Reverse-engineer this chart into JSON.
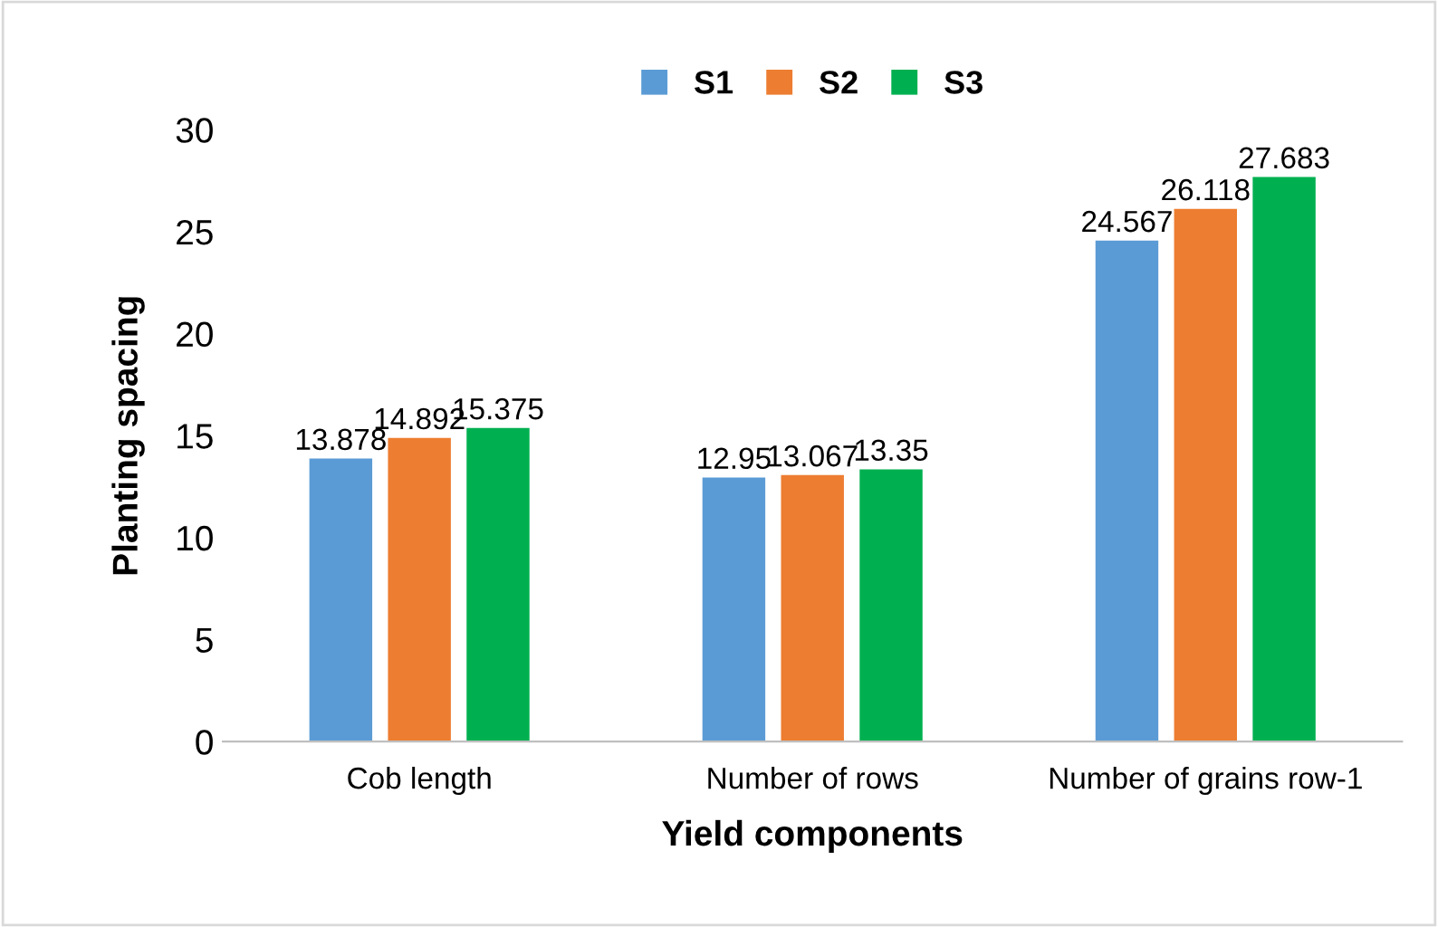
{
  "chart_data": {
    "type": "bar",
    "xlabel": "Yield components",
    "ylabel": "Planting spacing",
    "categories": [
      "Cob length",
      "Number of rows",
      "Number of grains row-1"
    ],
    "series": [
      {
        "name": "S1",
        "color": "#5b9bd5",
        "values": [
          13.878,
          12.95,
          24.567
        ]
      },
      {
        "name": "S2",
        "color": "#ed7d31",
        "values": [
          14.892,
          13.067,
          26.118
        ]
      },
      {
        "name": "S3",
        "color": "#00b050",
        "values": [
          15.375,
          13.35,
          27.683
        ]
      }
    ],
    "ylim": [
      0,
      30
    ],
    "yticks": [
      0,
      5,
      10,
      15,
      20,
      25,
      30
    ],
    "grid": false,
    "legend": "top",
    "data_labels": true
  }
}
